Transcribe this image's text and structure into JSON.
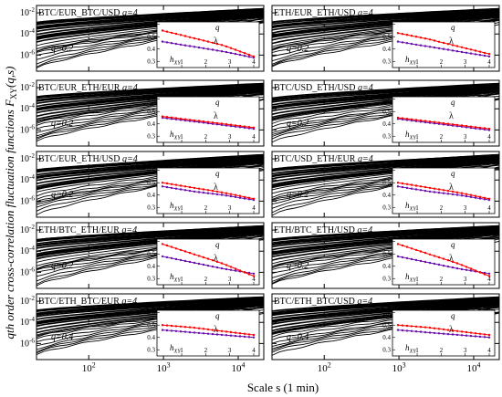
{
  "figure": {
    "ylabel": "qth order cross-correlation fluctuation functions F_XY(q,s)",
    "xlabel": "Scale s (1 min)",
    "x_ticks": [
      "10^2",
      "10^3",
      "10^4"
    ]
  },
  "colors": {
    "lambda": "#ff0000",
    "hxy": "#6a0dad",
    "curves": "#000000"
  },
  "chart_data": [
    {
      "type": "line",
      "pair": "BTC/EUR_BTC/USD",
      "q_high": "q=4",
      "q_low": "q=0.2",
      "xlim": [
        20,
        22000
      ],
      "ylim": [
        3e-08,
        0.05
      ],
      "y_ticks": [
        "10^-2",
        "10^-4",
        "10^-6"
      ],
      "s_break": 100,
      "inset": {
        "q_label": "q",
        "lambda_label": "λ",
        "h_label": "h_XY",
        "ylim": [
          0.25,
          0.62
        ],
        "y_ticks": [
          "0.6",
          "0.5",
          "0.4",
          "0.3"
        ],
        "x_ticks": [
          "1",
          "2",
          "3",
          "4"
        ],
        "lambda": [
          0.55,
          0.49,
          0.43,
          0.34
        ],
        "hxy": [
          0.46,
          0.42,
          0.38,
          0.33
        ]
      }
    },
    {
      "type": "line",
      "pair": "ETH/EUR_ETH/USD",
      "q_high": "q=4",
      "q_low": "q=0.2",
      "xlim": [
        20,
        22000
      ],
      "ylim": [
        3e-08,
        0.05
      ],
      "y_ticks": [
        "10^-2",
        "10^-4",
        "10^-6"
      ],
      "s_break": 100,
      "inset": {
        "q_label": "q",
        "lambda_label": "λ",
        "h_label": "h_XY",
        "ylim": [
          0.25,
          0.62
        ],
        "y_ticks": [
          "0.6",
          "0.5",
          "0.4",
          "0.3"
        ],
        "x_ticks": [
          "1",
          "2",
          "3",
          "4"
        ],
        "lambda": [
          0.53,
          0.48,
          0.42,
          0.36
        ],
        "hxy": [
          0.46,
          0.42,
          0.38,
          0.34
        ]
      }
    },
    {
      "type": "line",
      "pair": "BTC/EUR_ETH/EUR",
      "q_high": "q=4",
      "q_low": "q=0.2",
      "xlim": [
        20,
        22000
      ],
      "ylim": [
        3e-08,
        0.05
      ],
      "y_ticks": [
        "10^-2",
        "10^-4",
        "10^-6"
      ],
      "s_break": 100,
      "inset": {
        "q_label": "q",
        "lambda_label": "λ",
        "h_label": "h_XY",
        "ylim": [
          0.25,
          0.62
        ],
        "y_ticks": [
          "0.6",
          "0.5",
          "0.4",
          "0.3"
        ],
        "x_ticks": [
          "1",
          "2",
          "3",
          "4"
        ],
        "lambda": [
          0.46,
          0.43,
          0.4,
          0.37
        ],
        "hxy": [
          0.45,
          0.42,
          0.39,
          0.36
        ]
      }
    },
    {
      "type": "line",
      "pair": "BTC/USD_ETH/USD",
      "q_high": "q=4",
      "q_low": "q=0.2",
      "xlim": [
        20,
        22000
      ],
      "ylim": [
        3e-08,
        0.05
      ],
      "y_ticks": [
        "10^-2",
        "10^-4",
        "10^-6"
      ],
      "s_break": 100,
      "inset": {
        "q_label": "q",
        "lambda_label": "λ",
        "h_label": "h_XY",
        "ylim": [
          0.25,
          0.62
        ],
        "y_ticks": [
          "0.6",
          "0.5",
          "0.4",
          "0.3"
        ],
        "x_ticks": [
          "1",
          "2",
          "3",
          "4"
        ],
        "lambda": [
          0.45,
          0.42,
          0.39,
          0.36
        ],
        "hxy": [
          0.44,
          0.41,
          0.38,
          0.35
        ]
      }
    },
    {
      "type": "line",
      "pair": "BTC/EUR_ETH/USD",
      "q_high": "q=4",
      "q_low": "q=0.2",
      "xlim": [
        20,
        22000
      ],
      "ylim": [
        3e-08,
        0.05
      ],
      "y_ticks": [
        "10^-2",
        "10^-4",
        "10^-6"
      ],
      "s_break": 100,
      "inset": {
        "q_label": "q",
        "lambda_label": "λ",
        "h_label": "h_XY",
        "ylim": [
          0.25,
          0.62
        ],
        "y_ticks": [
          "0.6",
          "0.5",
          "0.4",
          "0.3"
        ],
        "x_ticks": [
          "1",
          "2",
          "3",
          "4"
        ],
        "lambda": [
          0.5,
          0.46,
          0.42,
          0.37
        ],
        "hxy": [
          0.47,
          0.43,
          0.4,
          0.36
        ]
      }
    },
    {
      "type": "line",
      "pair": "BTC/USD_ETH/EUR",
      "q_high": "q=4",
      "q_low": "q=0.2",
      "xlim": [
        20,
        22000
      ],
      "ylim": [
        3e-08,
        0.05
      ],
      "y_ticks": [
        "10^-2",
        "10^-4",
        "10^-6"
      ],
      "s_break": 100,
      "inset": {
        "q_label": "q",
        "lambda_label": "λ",
        "h_label": "h_XY",
        "ylim": [
          0.25,
          0.62
        ],
        "y_ticks": [
          "0.6",
          "0.5",
          "0.4",
          "0.3"
        ],
        "x_ticks": [
          "1",
          "2",
          "3",
          "4"
        ],
        "lambda": [
          0.5,
          0.46,
          0.42,
          0.37
        ],
        "hxy": [
          0.47,
          0.43,
          0.4,
          0.36
        ]
      }
    },
    {
      "type": "line",
      "pair": "ETH/BTC_ETH/EUR",
      "q_high": "q=4",
      "q_low": "q=0.2",
      "xlim": [
        20,
        22000
      ],
      "ylim": [
        3e-08,
        0.05
      ],
      "y_ticks": [
        "10^-2",
        "10^-4",
        "10^-6"
      ],
      "s_break": 100,
      "inset": {
        "q_label": "q",
        "lambda_label": "λ",
        "h_label": "h_XY",
        "ylim": [
          0.25,
          0.62
        ],
        "y_ticks": [
          "0.6",
          "0.5",
          "0.4",
          "0.3"
        ],
        "x_ticks": [
          "1",
          "2",
          "3",
          "4"
        ],
        "lambda": [
          0.58,
          0.5,
          0.42,
          0.32
        ],
        "hxy": [
          0.48,
          0.43,
          0.38,
          0.34
        ]
      }
    },
    {
      "type": "line",
      "pair": "ETH/BTC_ETH/USD",
      "q_high": "q=4",
      "q_low": "q=0.2",
      "xlim": [
        20,
        22000
      ],
      "ylim": [
        3e-08,
        0.05
      ],
      "y_ticks": [
        "10^-2",
        "10^-4",
        "10^-6"
      ],
      "s_break": 100,
      "inset": {
        "q_label": "q",
        "lambda_label": "λ",
        "h_label": "h_XY",
        "ylim": [
          0.25,
          0.62
        ],
        "y_ticks": [
          "0.6",
          "0.5",
          "0.4",
          "0.3"
        ],
        "x_ticks": [
          "1",
          "2",
          "3",
          "4"
        ],
        "lambda": [
          0.58,
          0.5,
          0.42,
          0.32
        ],
        "hxy": [
          0.48,
          0.43,
          0.38,
          0.34
        ]
      }
    },
    {
      "type": "line",
      "pair": "BTC/ETH_BTC/EUR",
      "q_high": "q=4",
      "q_low": "q=0.4",
      "xlim": [
        20,
        22000
      ],
      "ylim": [
        3e-08,
        0.05
      ],
      "y_ticks": [
        "10^-2",
        "10^-4",
        "10^-6"
      ],
      "s_break": 100,
      "inset": {
        "q_label": "q",
        "lambda_label": "λ",
        "h_label": "h_XY",
        "ylim": [
          0.25,
          0.62
        ],
        "y_ticks": [
          "0.6",
          "0.5",
          "0.4",
          "0.3"
        ],
        "x_ticks": [
          "1",
          "2",
          "3",
          "4"
        ],
        "lambda": [
          0.5,
          0.48,
          0.45,
          0.42
        ],
        "hxy": [
          0.46,
          0.44,
          0.42,
          0.4
        ]
      }
    },
    {
      "type": "line",
      "pair": "BTC/ETH_BTC/USD",
      "q_high": "q=4",
      "q_low": "q=0.4",
      "xlim": [
        20,
        22000
      ],
      "ylim": [
        3e-08,
        0.05
      ],
      "y_ticks": [
        "10^-2",
        "10^-4",
        "10^-6"
      ],
      "s_break": 100,
      "inset": {
        "q_label": "q",
        "lambda_label": "λ",
        "h_label": "h_XY",
        "ylim": [
          0.25,
          0.62
        ],
        "y_ticks": [
          "0.6",
          "0.5",
          "0.4",
          "0.3"
        ],
        "x_ticks": [
          "1",
          "2",
          "3",
          "4"
        ],
        "lambda": [
          0.5,
          0.48,
          0.45,
          0.42
        ],
        "hxy": [
          0.46,
          0.44,
          0.42,
          0.4
        ]
      }
    }
  ]
}
